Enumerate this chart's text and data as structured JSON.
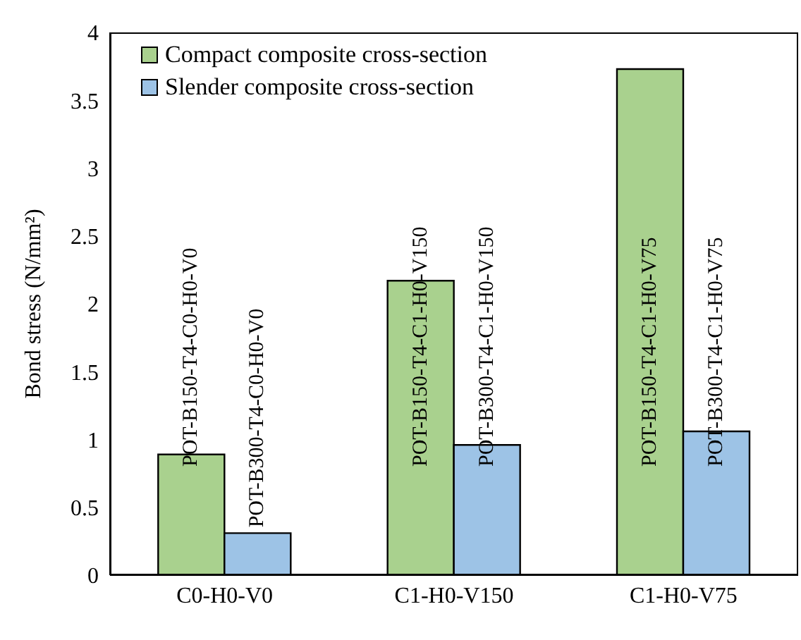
{
  "chart_data": {
    "type": "bar",
    "ylabel": "Bond stress (N/mm²)",
    "categories": [
      "C0-H0-V0",
      "C1-H0-V150",
      "C1-H0-V75"
    ],
    "series": [
      {
        "name": "Compact composite cross-section",
        "color": "#a9d18e",
        "values": [
          0.89,
          2.17,
          3.73
        ],
        "value_labels": [
          "POT-B150-T4-C0-H0-V0",
          "POT-B150-T4-C1-H0-V150",
          "POT-B150-T4-C1-H0-V75"
        ]
      },
      {
        "name": "Slender composite cross-section",
        "color": "#9dc3e6",
        "values": [
          0.31,
          0.96,
          1.06
        ],
        "value_labels": [
          "POT-B300-T4-C0-H0-V0",
          "POT-B300-T4-C1-H0-V150",
          "POT-B300-T4-C1-H0-V75"
        ]
      }
    ],
    "ylim": [
      0,
      4
    ],
    "yticks": [
      0,
      0.5,
      1,
      1.5,
      2,
      2.5,
      3,
      3.5,
      4
    ],
    "grid": false,
    "legend": "top left"
  }
}
